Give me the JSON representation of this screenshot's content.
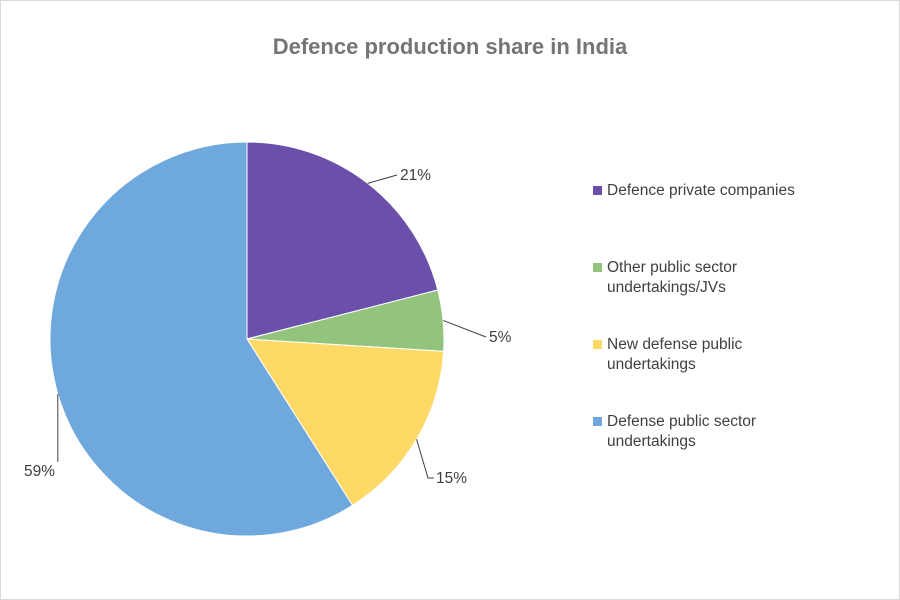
{
  "chart_data": {
    "type": "pie",
    "title": "Defence production share in India",
    "categories": [
      "Defence private companies",
      "Other public sector undertakings/JVs",
      "New defense public undertakings",
      "Defense public sector undertakings"
    ],
    "values": [
      21,
      5,
      15,
      59
    ],
    "data_labels": [
      "21%",
      "5%",
      "15%",
      "59%"
    ],
    "colors": [
      "#6a4fab",
      "#93c47d",
      "#ffd966",
      "#6fa8dc"
    ],
    "start_angle": "top, clockwise",
    "legend_position": "right"
  }
}
